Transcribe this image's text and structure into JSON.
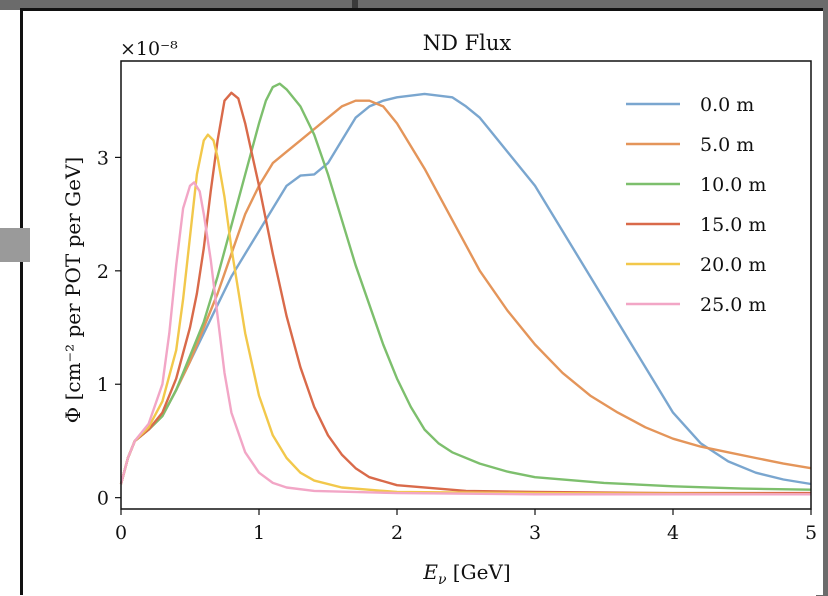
{
  "chart_data": {
    "type": "line",
    "title": "ND Flux",
    "xlabel": "E_ν [GeV]",
    "xlabel_main": "E",
    "xlabel_sub": "ν",
    "xlabel_unit": " [GeV]",
    "ylabel": "Φ [cm⁻² per POT per GeV]",
    "y_multiplier": "×10⁻⁸",
    "xlim": [
      0,
      5
    ],
    "ylim": [
      -0.1,
      3.85
    ],
    "x_ticks": [
      "0",
      "1",
      "2",
      "3",
      "4",
      "5"
    ],
    "y_ticks": [
      "0",
      "1",
      "2",
      "3"
    ],
    "legend_position": "top-right",
    "series": [
      {
        "name": "0.0 m",
        "color": "#7aa6cf",
        "points": [
          [
            0,
            0.12
          ],
          [
            0.05,
            0.35
          ],
          [
            0.1,
            0.5
          ],
          [
            0.2,
            0.6
          ],
          [
            0.3,
            0.72
          ],
          [
            0.4,
            0.95
          ],
          [
            0.5,
            1.2
          ],
          [
            0.6,
            1.45
          ],
          [
            0.7,
            1.7
          ],
          [
            0.8,
            1.95
          ],
          [
            0.9,
            2.15
          ],
          [
            1.0,
            2.35
          ],
          [
            1.1,
            2.55
          ],
          [
            1.2,
            2.75
          ],
          [
            1.3,
            2.84
          ],
          [
            1.4,
            2.85
          ],
          [
            1.5,
            2.95
          ],
          [
            1.6,
            3.15
          ],
          [
            1.7,
            3.35
          ],
          [
            1.8,
            3.45
          ],
          [
            1.9,
            3.5
          ],
          [
            2.0,
            3.53
          ],
          [
            2.2,
            3.56
          ],
          [
            2.4,
            3.53
          ],
          [
            2.5,
            3.45
          ],
          [
            2.6,
            3.35
          ],
          [
            2.8,
            3.05
          ],
          [
            3.0,
            2.75
          ],
          [
            3.2,
            2.35
          ],
          [
            3.4,
            1.95
          ],
          [
            3.6,
            1.55
          ],
          [
            3.8,
            1.15
          ],
          [
            4.0,
            0.75
          ],
          [
            4.2,
            0.48
          ],
          [
            4.4,
            0.32
          ],
          [
            4.6,
            0.22
          ],
          [
            4.8,
            0.16
          ],
          [
            5.0,
            0.12
          ]
        ]
      },
      {
        "name": "5.0 m",
        "color": "#e4955a",
        "points": [
          [
            0,
            0.12
          ],
          [
            0.05,
            0.35
          ],
          [
            0.1,
            0.5
          ],
          [
            0.2,
            0.6
          ],
          [
            0.3,
            0.72
          ],
          [
            0.4,
            0.95
          ],
          [
            0.5,
            1.2
          ],
          [
            0.6,
            1.5
          ],
          [
            0.7,
            1.8
          ],
          [
            0.8,
            2.15
          ],
          [
            0.9,
            2.5
          ],
          [
            1.0,
            2.75
          ],
          [
            1.1,
            2.95
          ],
          [
            1.2,
            3.05
          ],
          [
            1.3,
            3.15
          ],
          [
            1.4,
            3.25
          ],
          [
            1.5,
            3.35
          ],
          [
            1.6,
            3.45
          ],
          [
            1.7,
            3.5
          ],
          [
            1.8,
            3.5
          ],
          [
            1.9,
            3.45
          ],
          [
            2.0,
            3.3
          ],
          [
            2.2,
            2.9
          ],
          [
            2.4,
            2.45
          ],
          [
            2.6,
            2.0
          ],
          [
            2.8,
            1.65
          ],
          [
            3.0,
            1.35
          ],
          [
            3.2,
            1.1
          ],
          [
            3.4,
            0.9
          ],
          [
            3.6,
            0.75
          ],
          [
            3.8,
            0.62
          ],
          [
            4.0,
            0.52
          ],
          [
            4.2,
            0.45
          ],
          [
            4.4,
            0.4
          ],
          [
            4.6,
            0.35
          ],
          [
            4.8,
            0.3
          ],
          [
            5.0,
            0.26
          ]
        ]
      },
      {
        "name": "10.0 m",
        "color": "#7dbf6d",
        "points": [
          [
            0,
            0.12
          ],
          [
            0.05,
            0.35
          ],
          [
            0.1,
            0.5
          ],
          [
            0.2,
            0.6
          ],
          [
            0.3,
            0.72
          ],
          [
            0.4,
            0.95
          ],
          [
            0.5,
            1.25
          ],
          [
            0.6,
            1.55
          ],
          [
            0.7,
            1.95
          ],
          [
            0.8,
            2.4
          ],
          [
            0.9,
            2.85
          ],
          [
            1.0,
            3.3
          ],
          [
            1.05,
            3.5
          ],
          [
            1.1,
            3.62
          ],
          [
            1.15,
            3.65
          ],
          [
            1.2,
            3.6
          ],
          [
            1.3,
            3.45
          ],
          [
            1.4,
            3.2
          ],
          [
            1.5,
            2.85
          ],
          [
            1.6,
            2.45
          ],
          [
            1.7,
            2.05
          ],
          [
            1.8,
            1.7
          ],
          [
            1.9,
            1.35
          ],
          [
            2.0,
            1.05
          ],
          [
            2.1,
            0.8
          ],
          [
            2.2,
            0.6
          ],
          [
            2.3,
            0.48
          ],
          [
            2.4,
            0.4
          ],
          [
            2.6,
            0.3
          ],
          [
            2.8,
            0.23
          ],
          [
            3.0,
            0.18
          ],
          [
            3.5,
            0.13
          ],
          [
            4.0,
            0.1
          ],
          [
            4.5,
            0.08
          ],
          [
            5.0,
            0.07
          ]
        ]
      },
      {
        "name": "15.0 m",
        "color": "#d96a4a",
        "points": [
          [
            0,
            0.12
          ],
          [
            0.05,
            0.35
          ],
          [
            0.1,
            0.5
          ],
          [
            0.2,
            0.6
          ],
          [
            0.3,
            0.75
          ],
          [
            0.4,
            1.05
          ],
          [
            0.5,
            1.5
          ],
          [
            0.55,
            1.8
          ],
          [
            0.6,
            2.2
          ],
          [
            0.65,
            2.7
          ],
          [
            0.7,
            3.15
          ],
          [
            0.75,
            3.5
          ],
          [
            0.8,
            3.57
          ],
          [
            0.85,
            3.52
          ],
          [
            0.9,
            3.3
          ],
          [
            1.0,
            2.75
          ],
          [
            1.1,
            2.15
          ],
          [
            1.2,
            1.6
          ],
          [
            1.3,
            1.15
          ],
          [
            1.4,
            0.8
          ],
          [
            1.5,
            0.55
          ],
          [
            1.6,
            0.38
          ],
          [
            1.7,
            0.26
          ],
          [
            1.8,
            0.18
          ],
          [
            2.0,
            0.11
          ],
          [
            2.5,
            0.06
          ],
          [
            3.0,
            0.05
          ],
          [
            4.0,
            0.04
          ],
          [
            5.0,
            0.04
          ]
        ]
      },
      {
        "name": "20.0 m",
        "color": "#f2c84b",
        "points": [
          [
            0,
            0.12
          ],
          [
            0.05,
            0.35
          ],
          [
            0.1,
            0.5
          ],
          [
            0.2,
            0.62
          ],
          [
            0.3,
            0.85
          ],
          [
            0.4,
            1.3
          ],
          [
            0.45,
            1.75
          ],
          [
            0.5,
            2.3
          ],
          [
            0.55,
            2.85
          ],
          [
            0.6,
            3.15
          ],
          [
            0.63,
            3.2
          ],
          [
            0.67,
            3.15
          ],
          [
            0.7,
            3.0
          ],
          [
            0.75,
            2.65
          ],
          [
            0.8,
            2.2
          ],
          [
            0.9,
            1.45
          ],
          [
            1.0,
            0.9
          ],
          [
            1.1,
            0.55
          ],
          [
            1.2,
            0.35
          ],
          [
            1.3,
            0.22
          ],
          [
            1.4,
            0.15
          ],
          [
            1.6,
            0.09
          ],
          [
            2.0,
            0.05
          ],
          [
            3.0,
            0.04
          ],
          [
            5.0,
            0.03
          ]
        ]
      },
      {
        "name": "25.0 m",
        "color": "#f2a6c6",
        "points": [
          [
            0,
            0.12
          ],
          [
            0.05,
            0.35
          ],
          [
            0.1,
            0.5
          ],
          [
            0.2,
            0.65
          ],
          [
            0.3,
            1.0
          ],
          [
            0.35,
            1.45
          ],
          [
            0.4,
            2.05
          ],
          [
            0.45,
            2.55
          ],
          [
            0.5,
            2.75
          ],
          [
            0.53,
            2.78
          ],
          [
            0.57,
            2.7
          ],
          [
            0.6,
            2.5
          ],
          [
            0.65,
            2.1
          ],
          [
            0.7,
            1.6
          ],
          [
            0.75,
            1.1
          ],
          [
            0.8,
            0.75
          ],
          [
            0.9,
            0.4
          ],
          [
            1.0,
            0.22
          ],
          [
            1.1,
            0.13
          ],
          [
            1.2,
            0.09
          ],
          [
            1.4,
            0.06
          ],
          [
            2.0,
            0.04
          ],
          [
            3.0,
            0.03
          ],
          [
            5.0,
            0.03
          ]
        ]
      }
    ]
  }
}
